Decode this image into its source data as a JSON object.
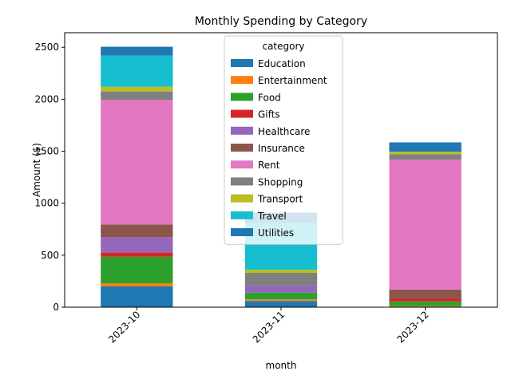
{
  "chart_data": {
    "type": "bar",
    "stacked": true,
    "title": "Monthly Spending by Category",
    "xlabel": "month",
    "ylabel": "Amount ($)",
    "categories": [
      "2023-10",
      "2023-11",
      "2023-12"
    ],
    "ylim": [
      0,
      2640
    ],
    "yticks": [
      0,
      500,
      1000,
      1500,
      2000,
      2500
    ],
    "grid": false,
    "legend_title": "category",
    "legend_position": "top-center",
    "series": [
      {
        "name": "Education",
        "color": "#1f77b4",
        "values": [
          200,
          60,
          0
        ]
      },
      {
        "name": "Entertainment",
        "color": "#ff7f0e",
        "values": [
          30,
          15,
          10
        ]
      },
      {
        "name": "Food",
        "color": "#2ca02c",
        "values": [
          255,
          65,
          45
        ]
      },
      {
        "name": "Gifts",
        "color": "#d62728",
        "values": [
          40,
          0,
          30
        ]
      },
      {
        "name": "Healthcare",
        "color": "#9467bd",
        "values": [
          150,
          70,
          0
        ]
      },
      {
        "name": "Insurance",
        "color": "#8c564b",
        "values": [
          120,
          0,
          85
        ]
      },
      {
        "name": "Rent",
        "color": "#e377c2",
        "values": [
          1200,
          0,
          1250
        ]
      },
      {
        "name": "Shopping",
        "color": "#7f7f7f",
        "values": [
          80,
          120,
          50
        ]
      },
      {
        "name": "Transport",
        "color": "#bcbd22",
        "values": [
          45,
          30,
          25
        ]
      },
      {
        "name": "Travel",
        "color": "#17becf",
        "values": [
          300,
          450,
          0
        ]
      },
      {
        "name": "Utilities",
        "color": "#1f77b4",
        "values": [
          85,
          100,
          90
        ]
      }
    ]
  }
}
